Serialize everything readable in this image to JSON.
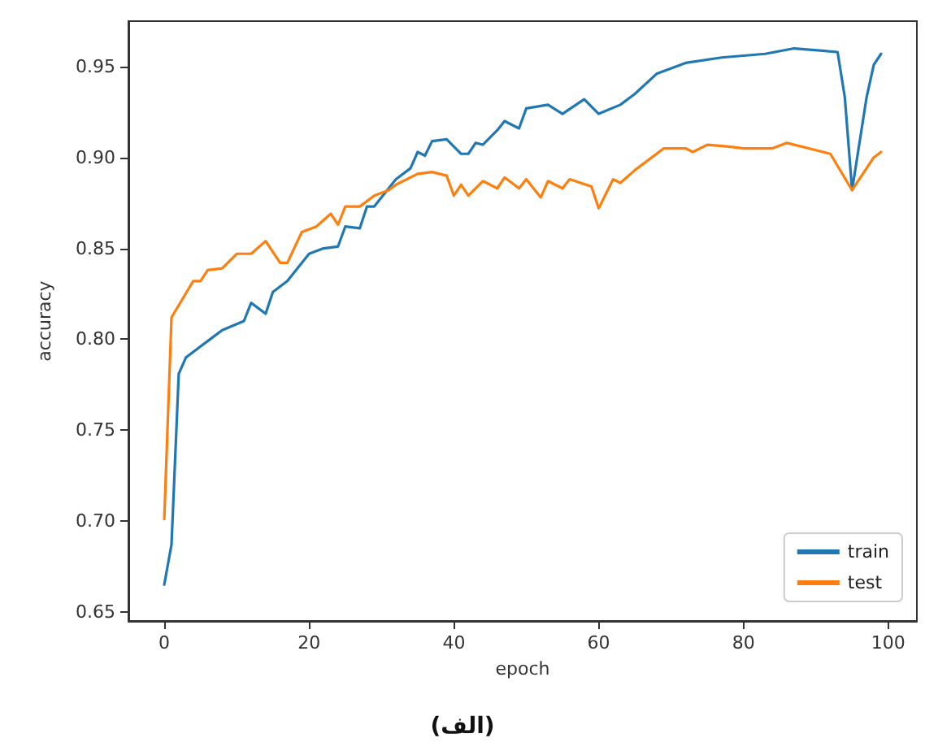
{
  "chart_data": {
    "type": "line",
    "xlabel": "epoch",
    "ylabel": "accuracy",
    "annotations": [
      "(الف)"
    ],
    "xlim": [
      -4.95,
      103.95
    ],
    "xticks": [
      0,
      20,
      40,
      60,
      80,
      100
    ],
    "ylim": [
      0.645,
      0.975
    ],
    "yticks": [
      0.65,
      {
        "value": 0.7,
        "label": "0.70"
      },
      0.75,
      {
        "value": 0.8,
        "label": "0.80"
      },
      0.85,
      {
        "value": 0.9,
        "label": "0.90"
      },
      0.95
    ],
    "grid": false,
    "legend": "bottom right",
    "marker": "none",
    "line_style": "solid",
    "series": [
      {
        "name": "train",
        "color": "#1f77b4",
        "x": [
          0,
          1,
          2,
          3,
          6,
          8,
          11,
          12,
          14,
          15,
          17,
          20,
          22,
          24,
          25,
          27,
          28,
          29,
          32,
          34,
          35,
          36,
          37,
          39,
          41,
          42,
          43,
          44,
          46,
          47,
          49,
          50,
          53,
          55,
          58,
          60,
          63,
          65,
          68,
          72,
          77,
          83,
          87,
          93,
          94,
          95,
          97,
          98,
          99
        ],
        "values": [
          0.665,
          0.687,
          0.781,
          0.79,
          0.799,
          0.805,
          0.81,
          0.82,
          0.814,
          0.826,
          0.832,
          0.847,
          0.85,
          0.851,
          0.862,
          0.861,
          0.873,
          0.873,
          0.888,
          0.894,
          0.903,
          0.901,
          0.909,
          0.91,
          0.902,
          0.902,
          0.908,
          0.907,
          0.915,
          0.92,
          0.916,
          0.927,
          0.929,
          0.924,
          0.932,
          0.924,
          0.929,
          0.935,
          0.946,
          0.952,
          0.955,
          0.957,
          0.96,
          0.958,
          0.933,
          0.882,
          0.933,
          0.951,
          0.957
        ]
      },
      {
        "name": "test",
        "color": "#ff7f0e",
        "x": [
          0,
          1,
          4,
          5,
          6,
          8,
          10,
          12,
          14,
          16,
          17,
          19,
          21,
          23,
          24,
          25,
          27,
          29,
          31,
          32,
          35,
          37,
          39,
          40,
          41,
          42,
          44,
          46,
          47,
          49,
          50,
          52,
          53,
          55,
          56,
          59,
          60,
          62,
          63,
          65,
          69,
          72,
          73,
          75,
          78,
          80,
          84,
          86,
          89,
          92,
          95,
          98,
          99
        ],
        "values": [
          0.701,
          0.812,
          0.832,
          0.832,
          0.838,
          0.839,
          0.847,
          0.847,
          0.854,
          0.842,
          0.842,
          0.859,
          0.862,
          0.869,
          0.863,
          0.873,
          0.873,
          0.879,
          0.882,
          0.885,
          0.891,
          0.892,
          0.89,
          0.879,
          0.885,
          0.879,
          0.887,
          0.883,
          0.889,
          0.883,
          0.888,
          0.878,
          0.887,
          0.883,
          0.888,
          0.884,
          0.872,
          0.888,
          0.886,
          0.893,
          0.905,
          0.905,
          0.903,
          0.907,
          0.906,
          0.905,
          0.905,
          0.908,
          0.905,
          0.902,
          0.882,
          0.9,
          0.903
        ]
      }
    ]
  }
}
